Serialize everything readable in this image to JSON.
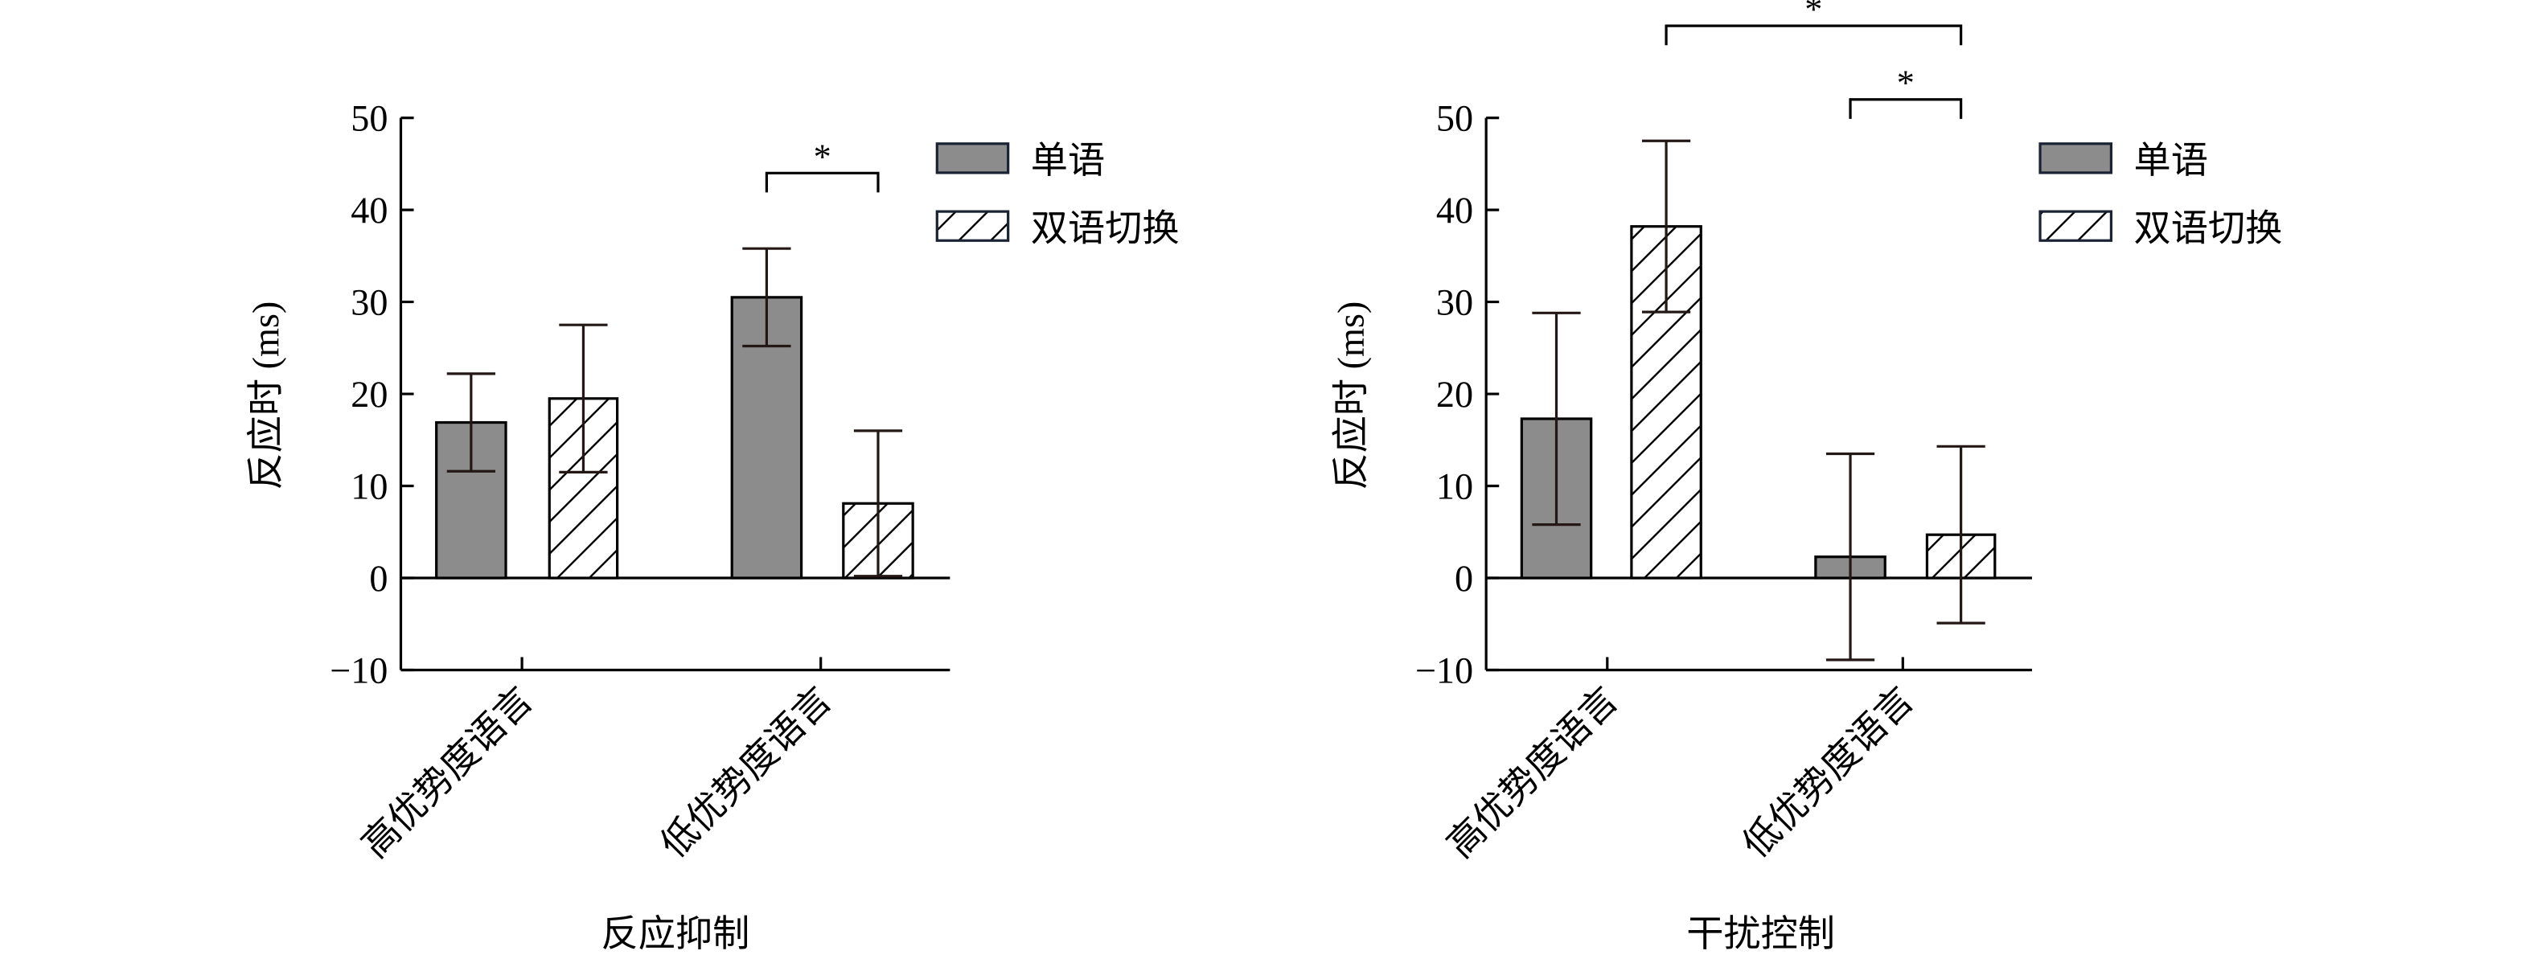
{
  "chart_data": [
    {
      "type": "bar",
      "title": "反应抑制",
      "xlabel": "反应抑制",
      "ylabel": "反应时 (ms)",
      "ylim": [
        -10,
        50
      ],
      "yticks": [
        -10,
        0,
        10,
        20,
        30,
        40,
        50
      ],
      "ytick_labels": [
        "−10",
        "0",
        "10",
        "20",
        "30",
        "40",
        "50"
      ],
      "categories": [
        "高优势度语言",
        "低优势度语言"
      ],
      "series": [
        {
          "name": "单语",
          "values": [
            16.9,
            30.5
          ],
          "errors": [
            5.3,
            5.3
          ],
          "fill": "#8c8c8c",
          "pattern": "solid"
        },
        {
          "name": "双语切换",
          "values": [
            19.5,
            8.1
          ],
          "errors": [
            8.0,
            7.9
          ],
          "fill": "#ffffff",
          "pattern": "hatch"
        }
      ],
      "legend": {
        "position": "top-right",
        "entries": [
          "单语",
          "双语切换"
        ]
      },
      "significance": [
        {
          "label": "*",
          "from": [
            1,
            0
          ],
          "to": [
            1,
            1
          ],
          "level": 44
        }
      ]
    },
    {
      "type": "bar",
      "title": "干扰控制",
      "xlabel": "干扰控制",
      "ylabel": "反应时 (ms)",
      "ylim": [
        -10,
        50
      ],
      "yticks": [
        -10,
        0,
        10,
        20,
        30,
        40,
        50
      ],
      "ytick_labels": [
        "−10",
        "0",
        "10",
        "20",
        "30",
        "40",
        "50"
      ],
      "categories": [
        "高优势度语言",
        "低优势度语言"
      ],
      "series": [
        {
          "name": "单语",
          "values": [
            17.3,
            2.3
          ],
          "errors": [
            11.5,
            11.2
          ],
          "fill": "#8c8c8c",
          "pattern": "solid"
        },
        {
          "name": "双语切换",
          "values": [
            38.2,
            4.7
          ],
          "errors": [
            9.3,
            9.6
          ],
          "fill": "#ffffff",
          "pattern": "hatch"
        }
      ],
      "legend": {
        "position": "top-right",
        "entries": [
          "单语",
          "双语切换"
        ]
      },
      "significance": [
        {
          "label": "*",
          "from": [
            0,
            1
          ],
          "to": [
            1,
            1
          ],
          "level": 60
        },
        {
          "label": "*",
          "from": [
            1,
            0
          ],
          "to": [
            1,
            1
          ],
          "level": 52
        }
      ]
    }
  ]
}
